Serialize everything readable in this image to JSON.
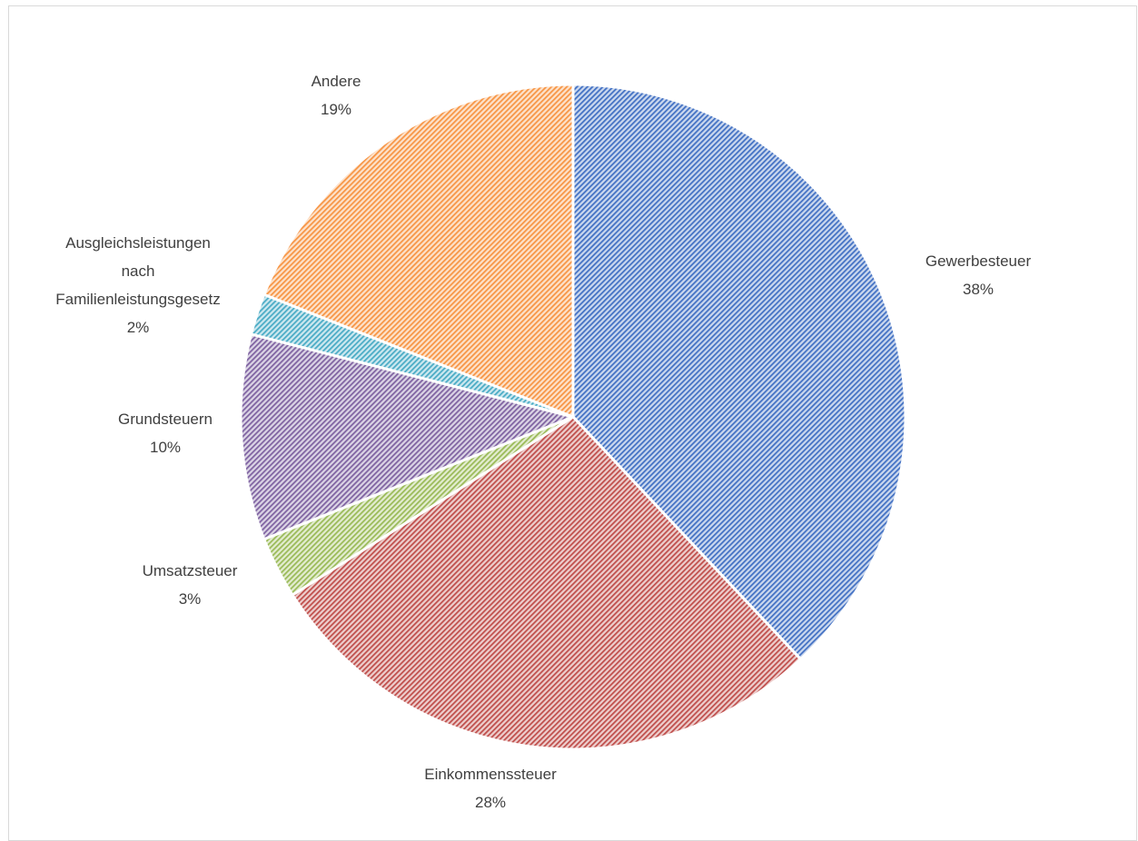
{
  "chart_data": {
    "type": "pie",
    "title": "",
    "start_angle_deg": 0,
    "direction": "clockwise",
    "slices": [
      {
        "label": "Gewerbesteuer",
        "value": 38,
        "value_label": "38%",
        "color": "#4472C4"
      },
      {
        "label": "Einkommenssteuer",
        "value": 28,
        "value_label": "28%",
        "color": "#C0504D"
      },
      {
        "label": "Umsatzsteuer",
        "value": 3,
        "value_label": "3%",
        "color": "#9BBB59"
      },
      {
        "label": "Grundsteuern",
        "value": 10,
        "value_label": "10%",
        "color": "#8064A2"
      },
      {
        "label": "Ausgleichsleistungen nach Familienleistungsgesetz",
        "label_lines": [
          "Ausgleichsleistungen",
          "nach",
          "Familienleistungsgesetz"
        ],
        "value": 2,
        "value_label": "2%",
        "color": "#4BACC6"
      },
      {
        "label": "Andere",
        "value": 19,
        "value_label": "19%",
        "color": "#F79646"
      }
    ],
    "fill_style": "diagonal-hatch",
    "legend": "none",
    "labels": "outside"
  }
}
